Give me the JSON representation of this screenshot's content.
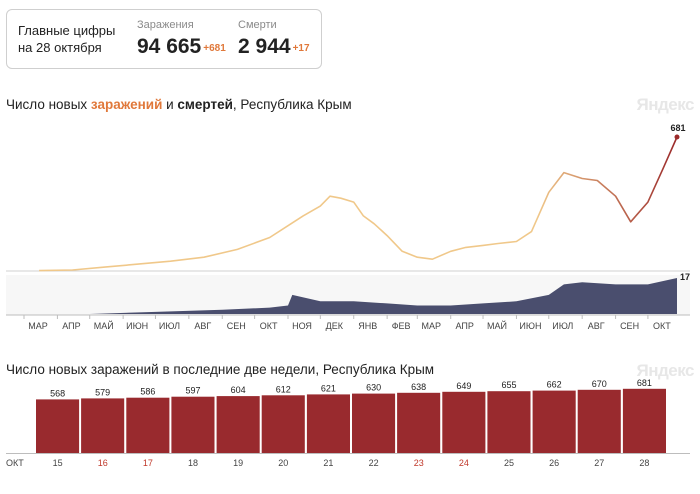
{
  "summary": {
    "title_line1": "Главные цифры",
    "title_line2": "на 28 октября",
    "infections": {
      "label": "Заражения",
      "value": "94 665",
      "delta": "+681"
    },
    "deaths": {
      "label": "Смерти",
      "value": "2 944",
      "delta": "+17"
    }
  },
  "chart1": {
    "title_part1": "Число новых ",
    "title_infect": "заражений",
    "title_part2": " и ",
    "title_death": "смертей",
    "title_part3": ", Республика Крым",
    "watermark": "Яндекс",
    "last_infections_label": "681",
    "last_deaths_label": "17"
  },
  "chart2": {
    "title": "Число новых заражений в последние две недели, Республика Крым",
    "watermark": "Яндекс"
  },
  "colors": {
    "infect_light": "#f0c88a",
    "infect_dark": "#9b2a2a",
    "deaths_fill": "#4a4e6e",
    "bar": "#992a2e",
    "accent": "#e0783a"
  },
  "chart_data": [
    {
      "type": "area",
      "series": [
        {
          "name": "заражений",
          "x": [
            "2020-03-15",
            "2020-04-15",
            "2020-05-15",
            "2020-06-15",
            "2020-07-15",
            "2020-08-15",
            "2020-09-15",
            "2020-10-15",
            "2020-11-01",
            "2020-11-15",
            "2020-12-01",
            "2020-12-10",
            "2020-12-20",
            "2021-01-01",
            "2021-01-10",
            "2021-01-20",
            "2021-02-01",
            "2021-02-15",
            "2021-03-01",
            "2021-03-15",
            "2021-04-01",
            "2021-04-15",
            "2021-05-01",
            "2021-05-15",
            "2021-06-01",
            "2021-06-15",
            "2021-07-01",
            "2021-07-15",
            "2021-08-01",
            "2021-08-15",
            "2021-09-01",
            "2021-09-15",
            "2021-10-01",
            "2021-10-15",
            "2021-10-28"
          ],
          "values": [
            2,
            5,
            20,
            35,
            50,
            70,
            110,
            170,
            230,
            280,
            330,
            380,
            370,
            350,
            280,
            240,
            180,
            100,
            70,
            60,
            100,
            120,
            130,
            140,
            150,
            200,
            400,
            500,
            470,
            460,
            380,
            250,
            350,
            520,
            681
          ]
        },
        {
          "name": "смертей",
          "x": [
            "2020-03-15",
            "2020-05-01",
            "2020-07-01",
            "2020-09-01",
            "2020-10-15",
            "2020-11-01",
            "2020-11-05",
            "2020-12-01",
            "2021-01-01",
            "2021-02-01",
            "2021-03-01",
            "2021-04-01",
            "2021-05-01",
            "2021-06-01",
            "2021-07-01",
            "2021-07-15",
            "2021-08-01",
            "2021-09-01",
            "2021-10-01",
            "2021-10-28"
          ],
          "values": [
            0,
            0,
            1,
            2,
            3,
            4,
            9,
            6,
            6,
            5,
            4,
            4,
            5,
            6,
            9,
            14,
            15,
            14,
            14,
            17
          ]
        }
      ],
      "x_tick_labels": [
        "МАР",
        "АПР",
        "МАЙ",
        "ИЮН",
        "ИЮЛ",
        "АВГ",
        "СЕН",
        "ОКТ",
        "НОЯ",
        "ДЕК",
        "ЯНВ",
        "ФЕВ",
        "МАР",
        "АПР",
        "МАЙ",
        "ИЮН",
        "ИЮЛ",
        "АВГ",
        "СЕН",
        "ОКТ"
      ]
    },
    {
      "type": "bar",
      "x_axis_label": "ОКТ",
      "categories": [
        "15",
        "16",
        "17",
        "18",
        "19",
        "20",
        "21",
        "22",
        "23",
        "24",
        "25",
        "26",
        "27",
        "28"
      ],
      "weekend_categories": [
        "16",
        "17",
        "23",
        "24"
      ],
      "values": [
        568,
        579,
        586,
        597,
        604,
        612,
        621,
        630,
        638,
        649,
        655,
        662,
        670,
        681
      ],
      "ylim": [
        0,
        700
      ]
    }
  ]
}
